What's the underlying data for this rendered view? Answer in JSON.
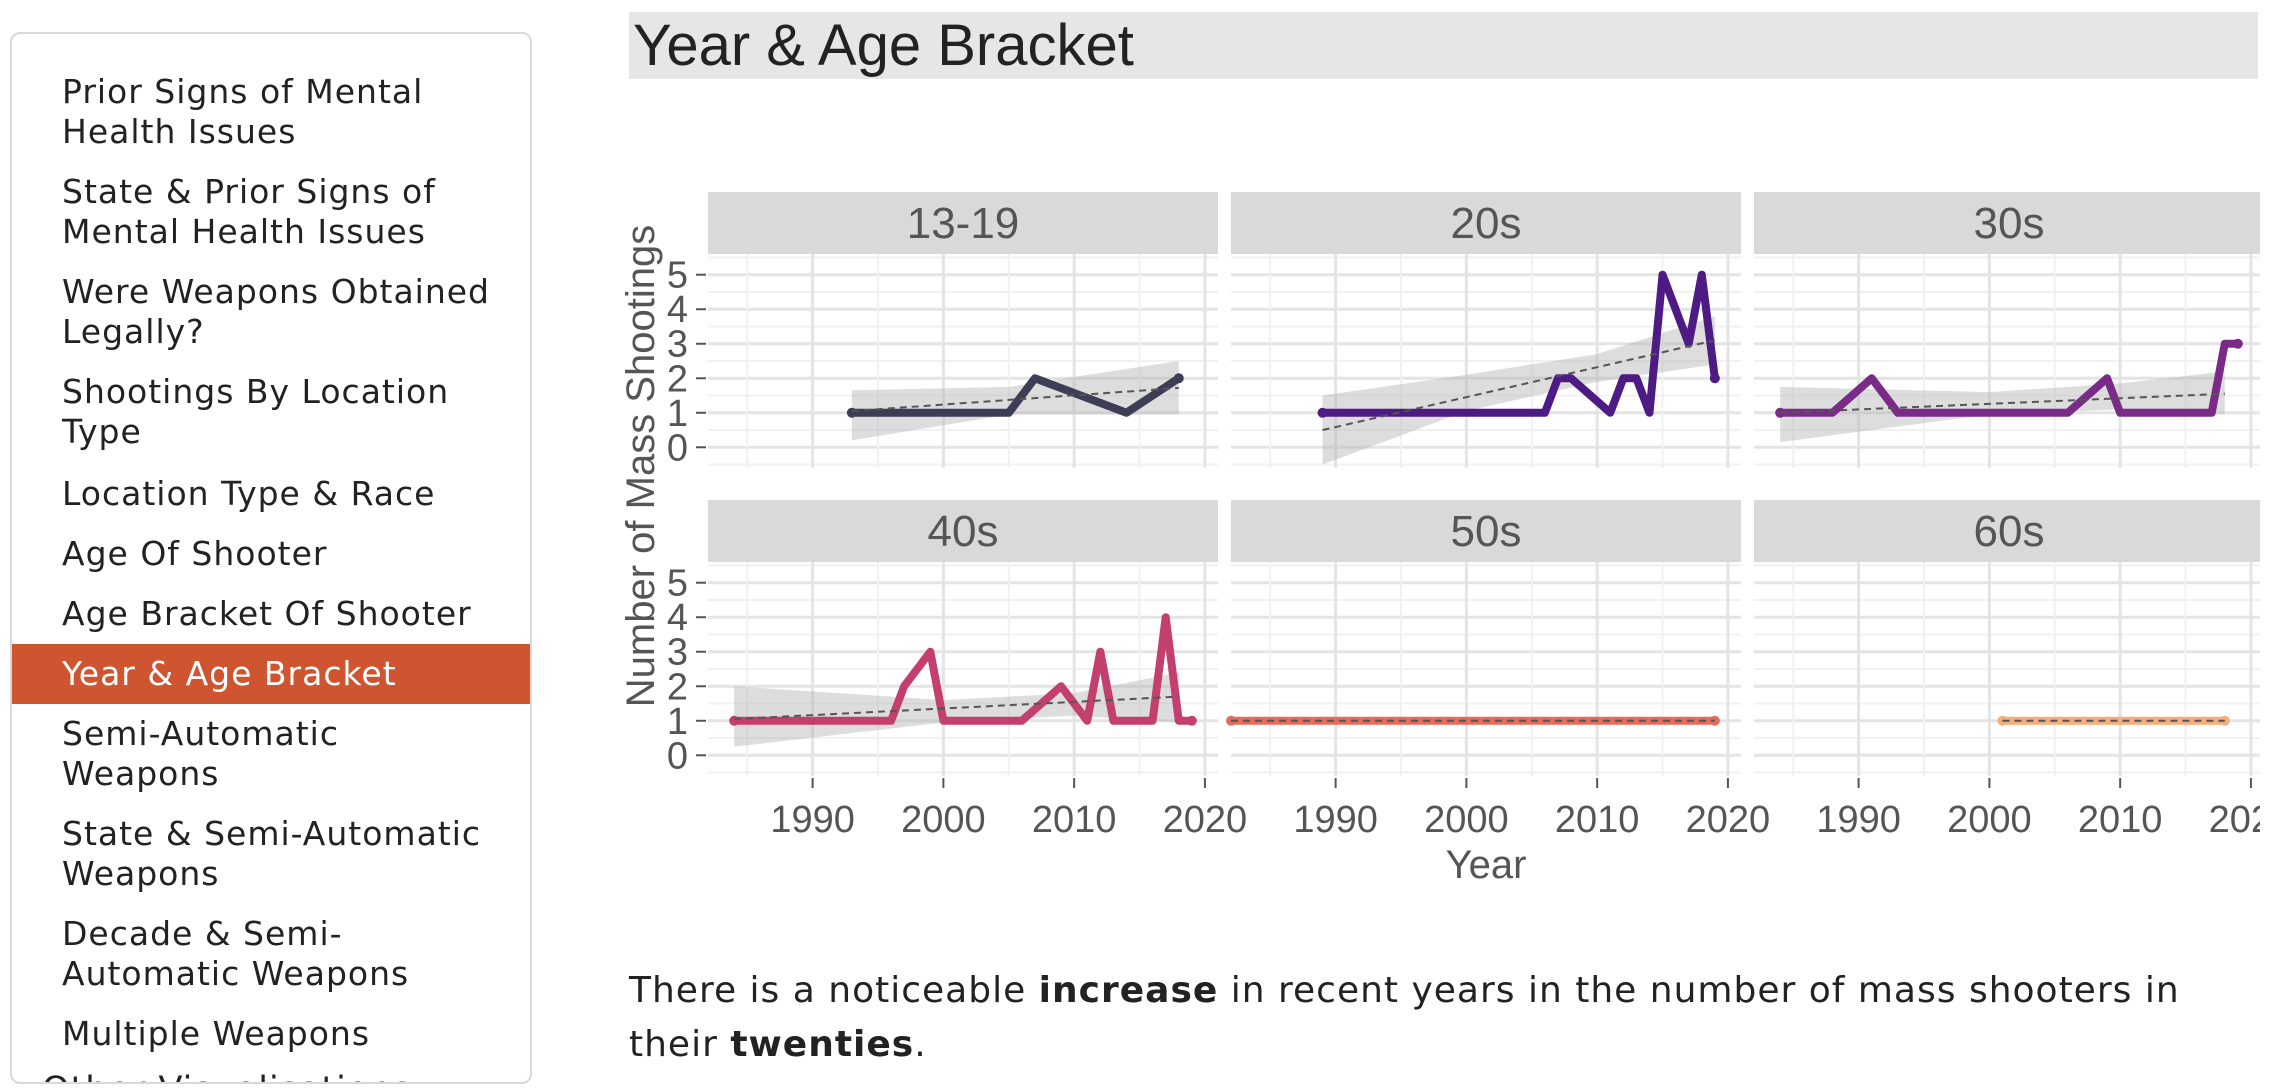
{
  "sidebar": {
    "items": [
      {
        "label": "Prior Signs of Mental Health Issues",
        "lines": [
          "Prior Signs of Mental",
          "Health Issues"
        ],
        "active": false
      },
      {
        "label": "State & Prior Signs of Mental Health Issues",
        "lines": [
          "State & Prior Signs of",
          "Mental Health Issues"
        ],
        "active": false
      },
      {
        "label": "Were Weapons Obtained Legally?",
        "lines": [
          "Were Weapons Obtained",
          "Legally?"
        ],
        "active": false
      },
      {
        "label": "Shootings By Location Type",
        "lines": [
          "Shootings By Location",
          "Type"
        ],
        "active": false
      },
      {
        "label": "Location Type & Race",
        "lines": [
          "Location Type & Race"
        ],
        "active": false
      },
      {
        "label": "Age Of Shooter",
        "lines": [
          "Age Of Shooter"
        ],
        "active": false
      },
      {
        "label": "Age Bracket Of Shooter",
        "lines": [
          "Age Bracket Of Shooter"
        ],
        "active": false
      },
      {
        "label": "Year & Age Bracket",
        "lines": [
          "Year & Age Bracket"
        ],
        "active": true
      },
      {
        "label": "Semi-Automatic Weapons",
        "lines": [
          "Semi-Automatic",
          "Weapons"
        ],
        "active": false
      },
      {
        "label": "State & Semi-Automatic Weapons",
        "lines": [
          "State & Semi-Automatic",
          "Weapons"
        ],
        "active": false
      },
      {
        "label": "Decade & Semi-Automatic Weapons",
        "lines": [
          "Decade & Semi-",
          "Automatic Weapons"
        ],
        "active": false
      },
      {
        "label": "Multiple Weapons",
        "lines": [
          "Multiple Weapons"
        ],
        "active": false
      }
    ],
    "footer_label": "Other Visualisations"
  },
  "page_title": "Year & Age Bracket",
  "caption": {
    "part1": "There is a noticeable ",
    "bold1": "increase",
    "part2": " in recent years in the number of mass shooters in their ",
    "bold2": "twenties",
    "part3": "."
  },
  "chart_data": {
    "type": "line",
    "xlabel": "Year",
    "ylabel": "Number of Mass Shootings",
    "xlim": [
      1982,
      2021
    ],
    "ylim": [
      -0.6,
      5.6
    ],
    "xticks": [
      1990,
      2000,
      2010,
      2020
    ],
    "yticks": [
      0,
      1,
      2,
      3,
      4,
      5
    ],
    "grid": true,
    "layout": "facet 2x3",
    "trend": "dashed linear fit with grey confidence band",
    "panels": [
      {
        "name": "13-19",
        "color": "#3d3d56",
        "points": [
          [
            1993,
            1
          ],
          [
            1998,
            1
          ],
          [
            2000,
            1
          ],
          [
            2005,
            1
          ],
          [
            2007,
            2
          ],
          [
            2014,
            1
          ],
          [
            2018,
            2
          ]
        ],
        "fit": [
          [
            1993,
            1.05
          ],
          [
            2018,
            1.72
          ]
        ],
        "band_upper": [
          [
            1993,
            1.65
          ],
          [
            2005,
            1.75
          ],
          [
            2018,
            2.5
          ]
        ],
        "band_lower": [
          [
            1993,
            0.2
          ],
          [
            2005,
            0.95
          ],
          [
            2018,
            0.95
          ]
        ]
      },
      {
        "name": "20s",
        "color": "#4e1a84",
        "points": [
          [
            1989,
            1
          ],
          [
            1995,
            1
          ],
          [
            2000,
            1
          ],
          [
            2005,
            1
          ],
          [
            2006,
            1
          ],
          [
            2007,
            2
          ],
          [
            2008,
            2
          ],
          [
            2011,
            1
          ],
          [
            2012,
            2
          ],
          [
            2013,
            2
          ],
          [
            2014,
            1
          ],
          [
            2015,
            5
          ],
          [
            2017,
            3
          ],
          [
            2018,
            5
          ],
          [
            2019,
            2
          ]
        ],
        "fit": [
          [
            1989,
            0.5
          ],
          [
            2019,
            3.1
          ]
        ],
        "band_upper": [
          [
            1989,
            1.5
          ],
          [
            2000,
            2.1
          ],
          [
            2010,
            2.7
          ],
          [
            2019,
            3.8
          ]
        ],
        "band_lower": [
          [
            1989,
            -0.5
          ],
          [
            2000,
            1.05
          ],
          [
            2010,
            1.9
          ],
          [
            2019,
            2.4
          ]
        ]
      },
      {
        "name": "30s",
        "color": "#7a2b88",
        "points": [
          [
            1984,
            1
          ],
          [
            1988,
            1
          ],
          [
            1991,
            2
          ],
          [
            1993,
            1
          ],
          [
            1996,
            1
          ],
          [
            2000,
            1
          ],
          [
            2006,
            1
          ],
          [
            2009,
            2
          ],
          [
            2010,
            1
          ],
          [
            2017,
            1
          ],
          [
            2018,
            3
          ],
          [
            2019,
            3
          ]
        ],
        "fit": [
          [
            1984,
            1.0
          ],
          [
            2018,
            1.55
          ]
        ],
        "band_upper": [
          [
            1984,
            1.75
          ],
          [
            2000,
            1.6
          ],
          [
            2010,
            1.85
          ],
          [
            2018,
            2.2
          ]
        ],
        "band_lower": [
          [
            1984,
            0.15
          ],
          [
            2000,
            0.95
          ],
          [
            2010,
            1.1
          ],
          [
            2018,
            0.95
          ]
        ]
      },
      {
        "name": "40s",
        "color": "#c33f6d",
        "points": [
          [
            1984,
            1
          ],
          [
            1996,
            1
          ],
          [
            1997,
            2
          ],
          [
            1999,
            3
          ],
          [
            2000,
            1
          ],
          [
            2006,
            1
          ],
          [
            2009,
            2
          ],
          [
            2011,
            1
          ],
          [
            2012,
            3
          ],
          [
            2013,
            1
          ],
          [
            2016,
            1
          ],
          [
            2017,
            4
          ],
          [
            2018,
            1
          ],
          [
            2019,
            1
          ]
        ],
        "fit": [
          [
            1984,
            1.05
          ],
          [
            2018,
            1.7
          ]
        ],
        "band_upper": [
          [
            1984,
            2.0
          ],
          [
            2000,
            1.6
          ],
          [
            2010,
            1.8
          ],
          [
            2018,
            2.4
          ]
        ],
        "band_lower": [
          [
            1984,
            0.25
          ],
          [
            2000,
            0.95
          ],
          [
            2010,
            1.15
          ],
          [
            2018,
            0.95
          ]
        ]
      },
      {
        "name": "50s",
        "color": "#e56b5d",
        "points": [
          [
            1982,
            1
          ],
          [
            1990,
            1
          ],
          [
            2000,
            1
          ],
          [
            2010,
            1
          ],
          [
            2019,
            1
          ]
        ],
        "fit": [
          [
            1982,
            1
          ],
          [
            2019,
            1
          ]
        ],
        "band_upper": [],
        "band_lower": []
      },
      {
        "name": "60s",
        "color": "#f6ad7a",
        "points": [
          [
            2001,
            1
          ],
          [
            2010,
            1
          ],
          [
            2018,
            1
          ]
        ],
        "fit": [
          [
            2001,
            1
          ],
          [
            2018,
            1
          ]
        ],
        "band_upper": [],
        "band_lower": []
      }
    ]
  }
}
